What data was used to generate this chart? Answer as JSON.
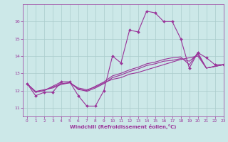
{
  "background_color": "#cce8e8",
  "line_color": "#993399",
  "grid_color": "#aacccc",
  "xlabel": "Windchill (Refroidissement éolien,°C)",
  "xlim": [
    -0.5,
    23
  ],
  "ylim": [
    10.5,
    17.0
  ],
  "xticks": [
    0,
    1,
    2,
    3,
    4,
    5,
    6,
    7,
    8,
    9,
    10,
    11,
    12,
    13,
    14,
    15,
    16,
    17,
    18,
    19,
    20,
    21,
    22,
    23
  ],
  "yticks": [
    11,
    12,
    13,
    14,
    15,
    16
  ],
  "figsize": [
    3.2,
    2.0
  ],
  "dpi": 100,
  "series": [
    {
      "x": [
        0,
        1,
        2,
        3,
        4,
        5,
        6,
        7,
        8,
        9,
        10,
        11,
        12,
        13,
        14,
        15,
        16,
        17,
        18,
        19,
        20,
        21,
        22,
        23
      ],
      "y": [
        12.4,
        11.7,
        11.9,
        11.9,
        12.5,
        12.5,
        11.7,
        11.1,
        11.1,
        12.0,
        14.0,
        13.6,
        15.5,
        15.4,
        16.6,
        16.5,
        16.0,
        16.0,
        15.0,
        13.3,
        14.2,
        13.9,
        13.5,
        13.5
      ],
      "marker": "D",
      "markersize": 2.0,
      "linewidth": 0.8
    },
    {
      "x": [
        0,
        1,
        2,
        3,
        4,
        5,
        6,
        7,
        8,
        9,
        10,
        11,
        12,
        13,
        14,
        15,
        16,
        17,
        18,
        19,
        20,
        21,
        22,
        23
      ],
      "y": [
        12.4,
        11.95,
        12.05,
        12.15,
        12.35,
        12.45,
        12.15,
        12.05,
        12.2,
        12.45,
        12.65,
        12.75,
        12.95,
        13.05,
        13.2,
        13.35,
        13.5,
        13.65,
        13.8,
        13.9,
        14.0,
        13.3,
        13.4,
        13.5
      ],
      "marker": null,
      "markersize": 0,
      "linewidth": 0.8
    },
    {
      "x": [
        0,
        1,
        2,
        3,
        4,
        5,
        6,
        7,
        8,
        9,
        10,
        11,
        12,
        13,
        14,
        15,
        16,
        17,
        18,
        19,
        20,
        21,
        22,
        23
      ],
      "y": [
        12.4,
        11.9,
        12.0,
        12.2,
        12.4,
        12.45,
        12.1,
        11.95,
        12.15,
        12.4,
        12.75,
        12.9,
        13.1,
        13.25,
        13.45,
        13.55,
        13.7,
        13.75,
        13.85,
        13.7,
        14.1,
        13.3,
        13.4,
        13.5
      ],
      "marker": null,
      "markersize": 0,
      "linewidth": 0.8
    },
    {
      "x": [
        0,
        1,
        2,
        3,
        4,
        5,
        6,
        7,
        8,
        9,
        10,
        11,
        12,
        13,
        14,
        15,
        16,
        17,
        18,
        19,
        20,
        21,
        22,
        23
      ],
      "y": [
        12.4,
        11.9,
        12.0,
        12.25,
        12.5,
        12.5,
        12.05,
        12.0,
        12.25,
        12.5,
        12.85,
        13.0,
        13.2,
        13.35,
        13.55,
        13.65,
        13.8,
        13.9,
        13.95,
        13.5,
        14.2,
        13.3,
        13.4,
        13.5
      ],
      "marker": null,
      "markersize": 0,
      "linewidth": 0.8
    }
  ]
}
